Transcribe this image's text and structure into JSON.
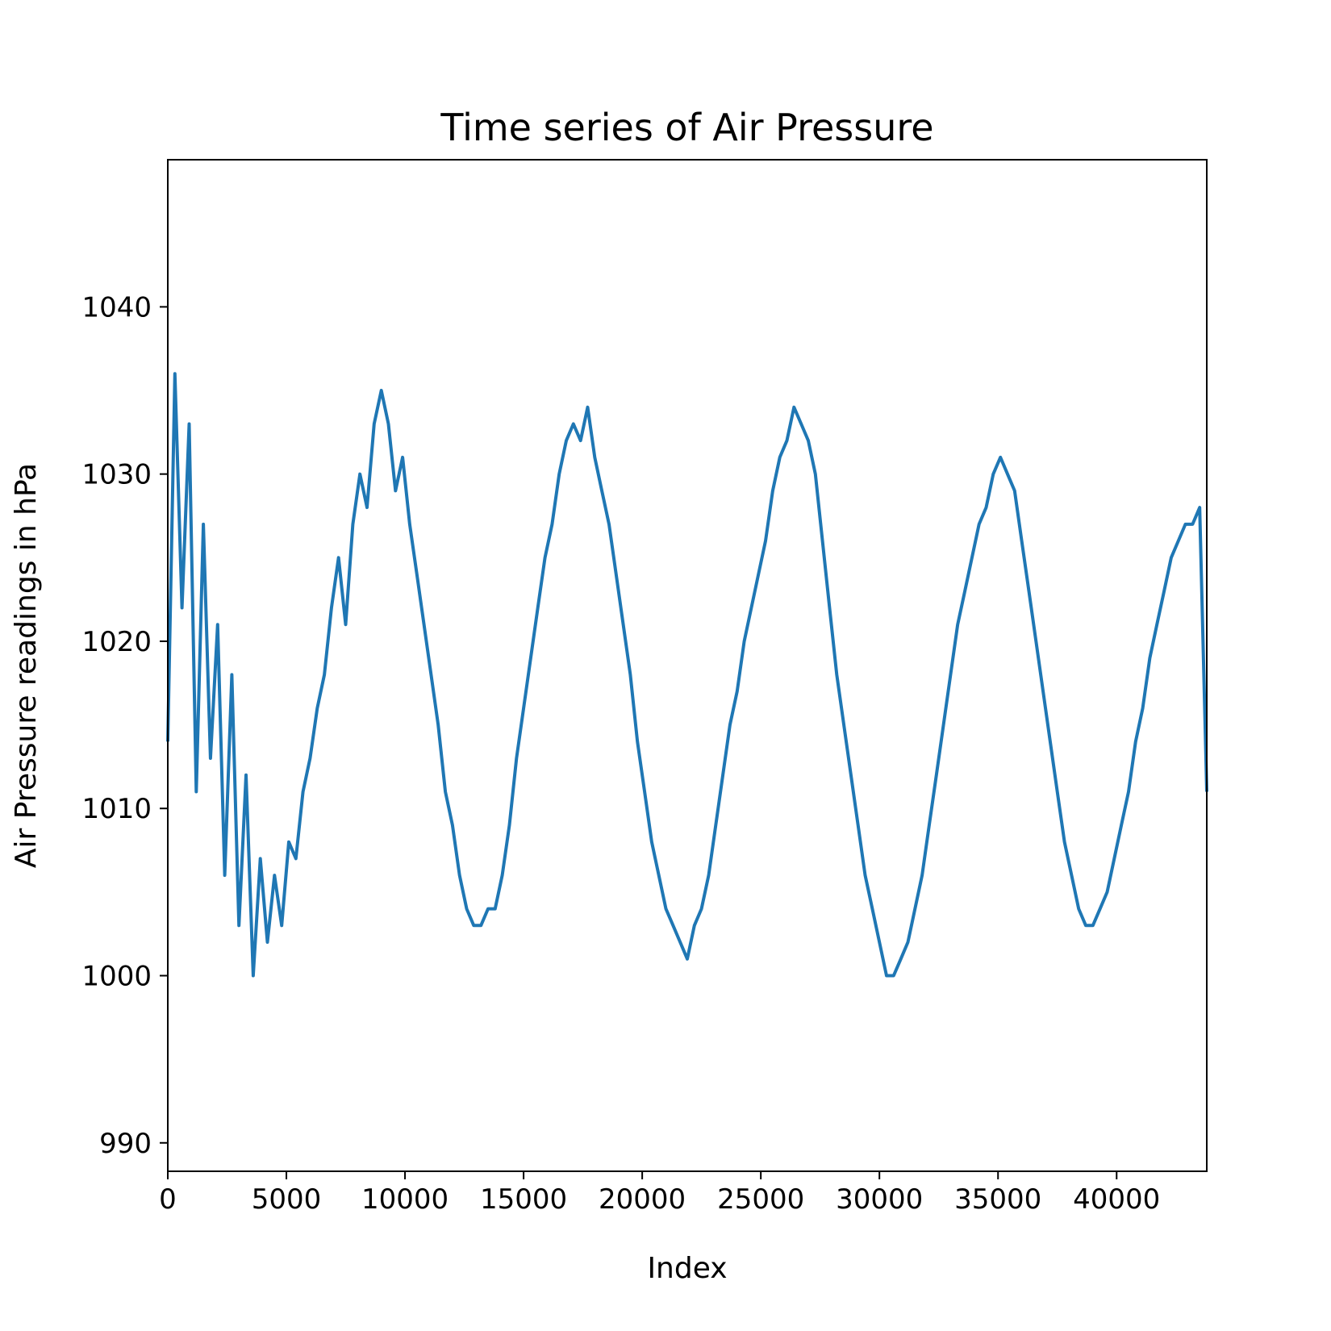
{
  "chart_data": {
    "type": "line",
    "title": "Time series of Air Pressure",
    "xlabel": "Index",
    "ylabel": "Air Pressure readings in hPa",
    "xlim": [
      0,
      43800
    ],
    "ylim": [
      988.3,
      1048.8
    ],
    "xticks": [
      0,
      5000,
      10000,
      15000,
      20000,
      25000,
      30000,
      35000,
      40000
    ],
    "yticks": [
      990,
      1000,
      1010,
      1020,
      1030,
      1040
    ],
    "grid": false,
    "series": [
      {
        "color": "#1f77b4",
        "points": [
          [
            0,
            1014
          ],
          [
            300,
            1036
          ],
          [
            600,
            1022
          ],
          [
            900,
            1033
          ],
          [
            1200,
            1011
          ],
          [
            1500,
            1027
          ],
          [
            1800,
            1013
          ],
          [
            2100,
            1021
          ],
          [
            2400,
            1006
          ],
          [
            2700,
            1018
          ],
          [
            3000,
            1003
          ],
          [
            3300,
            1012
          ],
          [
            3600,
            1000
          ],
          [
            3900,
            1007
          ],
          [
            4200,
            1002
          ],
          [
            4500,
            1006
          ],
          [
            4800,
            1003
          ],
          [
            5100,
            1008
          ],
          [
            5400,
            1007
          ],
          [
            5700,
            1011
          ],
          [
            6000,
            1013
          ],
          [
            6300,
            1016
          ],
          [
            6600,
            1018
          ],
          [
            6900,
            1022
          ],
          [
            7200,
            1025
          ],
          [
            7500,
            1021
          ],
          [
            7800,
            1027
          ],
          [
            8100,
            1030
          ],
          [
            8400,
            1028
          ],
          [
            8700,
            1033
          ],
          [
            9000,
            1035
          ],
          [
            9300,
            1033
          ],
          [
            9600,
            1029
          ],
          [
            9900,
            1031
          ],
          [
            10200,
            1027
          ],
          [
            10500,
            1024
          ],
          [
            10800,
            1021
          ],
          [
            11100,
            1018
          ],
          [
            11400,
            1015
          ],
          [
            11700,
            1011
          ],
          [
            12000,
            1009
          ],
          [
            12300,
            1006
          ],
          [
            12600,
            1004
          ],
          [
            12900,
            1003
          ],
          [
            13200,
            1003
          ],
          [
            13500,
            1004
          ],
          [
            13800,
            1004
          ],
          [
            14100,
            1006
          ],
          [
            14400,
            1009
          ],
          [
            14700,
            1013
          ],
          [
            15000,
            1016
          ],
          [
            15300,
            1019
          ],
          [
            15600,
            1022
          ],
          [
            15900,
            1025
          ],
          [
            16200,
            1027
          ],
          [
            16500,
            1030
          ],
          [
            16800,
            1032
          ],
          [
            17100,
            1033
          ],
          [
            17400,
            1032
          ],
          [
            17700,
            1034
          ],
          [
            18000,
            1031
          ],
          [
            18300,
            1029
          ],
          [
            18600,
            1027
          ],
          [
            18900,
            1024
          ],
          [
            19200,
            1021
          ],
          [
            19500,
            1018
          ],
          [
            19800,
            1014
          ],
          [
            20100,
            1011
          ],
          [
            20400,
            1008
          ],
          [
            20700,
            1006
          ],
          [
            21000,
            1004
          ],
          [
            21300,
            1003
          ],
          [
            21600,
            1002
          ],
          [
            21900,
            1001
          ],
          [
            22200,
            1003
          ],
          [
            22500,
            1004
          ],
          [
            22800,
            1006
          ],
          [
            23100,
            1009
          ],
          [
            23400,
            1012
          ],
          [
            23700,
            1015
          ],
          [
            24000,
            1017
          ],
          [
            24300,
            1020
          ],
          [
            24600,
            1022
          ],
          [
            24900,
            1024
          ],
          [
            25200,
            1026
          ],
          [
            25500,
            1029
          ],
          [
            25800,
            1031
          ],
          [
            26100,
            1032
          ],
          [
            26400,
            1034
          ],
          [
            26700,
            1033
          ],
          [
            27000,
            1032
          ],
          [
            27300,
            1030
          ],
          [
            27600,
            1026
          ],
          [
            27900,
            1022
          ],
          [
            28200,
            1018
          ],
          [
            28500,
            1015
          ],
          [
            28800,
            1012
          ],
          [
            29100,
            1009
          ],
          [
            29400,
            1006
          ],
          [
            29700,
            1004
          ],
          [
            30000,
            1002
          ],
          [
            30300,
            1000
          ],
          [
            30600,
            1000
          ],
          [
            30900,
            1001
          ],
          [
            31200,
            1002
          ],
          [
            31500,
            1004
          ],
          [
            31800,
            1006
          ],
          [
            32100,
            1009
          ],
          [
            32400,
            1012
          ],
          [
            32700,
            1015
          ],
          [
            33000,
            1018
          ],
          [
            33300,
            1021
          ],
          [
            33600,
            1023
          ],
          [
            33900,
            1025
          ],
          [
            34200,
            1027
          ],
          [
            34500,
            1028
          ],
          [
            34800,
            1030
          ],
          [
            35100,
            1031
          ],
          [
            35400,
            1030
          ],
          [
            35700,
            1029
          ],
          [
            36000,
            1026
          ],
          [
            36300,
            1023
          ],
          [
            36600,
            1020
          ],
          [
            36900,
            1017
          ],
          [
            37200,
            1014
          ],
          [
            37500,
            1011
          ],
          [
            37800,
            1008
          ],
          [
            38100,
            1006
          ],
          [
            38400,
            1004
          ],
          [
            38700,
            1003
          ],
          [
            39000,
            1003
          ],
          [
            39300,
            1004
          ],
          [
            39600,
            1005
          ],
          [
            39900,
            1007
          ],
          [
            40200,
            1009
          ],
          [
            40500,
            1011
          ],
          [
            40800,
            1014
          ],
          [
            41100,
            1016
          ],
          [
            41400,
            1019
          ],
          [
            41700,
            1021
          ],
          [
            42000,
            1023
          ],
          [
            42300,
            1025
          ],
          [
            42600,
            1026
          ],
          [
            42900,
            1027
          ],
          [
            43200,
            1027
          ],
          [
            43500,
            1028
          ],
          [
            43800,
            1011
          ]
        ]
      }
    ]
  }
}
